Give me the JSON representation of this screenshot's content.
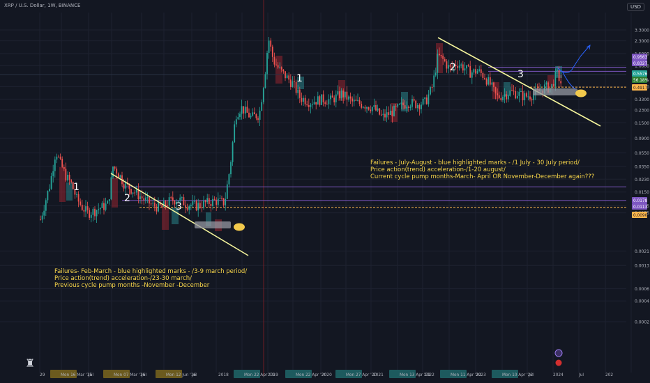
{
  "header": {
    "symbol_line": "XRP / U.S. Dollar, 1W, BINANCE",
    "currency_button": "USD"
  },
  "annotations": {
    "left": [
      "Failures- Feb-March  - blue highlighted marks - /3-9 march period/",
      "Price action(trend) acceleration-/23-30 march/",
      "Previous cycle pump months -November -December"
    ],
    "right": [
      "Failures - July-August - blue highlighted marks - /1 July - 30 July period/",
      "Price action(trend) acceleration-/1-20 august/",
      "Current cycle pump months-March- April OR November-December again???"
    ]
  },
  "wave_labels": [
    "1",
    "2",
    "3",
    "1",
    "2",
    "3"
  ],
  "colors": {
    "background": "#131722",
    "up": "#26a69a",
    "down": "#ef5350",
    "trendline": "#f5f59c",
    "annotation": "#f7d54a",
    "level_purple": "#7e57c2",
    "level_orange": "#ffb74d",
    "highlight_red": "#b22833",
    "highlight_teal": "#2e9ba0",
    "projection": "#2962ff"
  },
  "chart_data": {
    "type": "candlestick",
    "scale": "log",
    "x_ticks": [
      "29",
      "Mon 16 Mar '15",
      "Jul",
      "Mon 07 Mar '16",
      "Jul",
      "Mon 12 Jun '16",
      "Jul",
      "2018",
      "Mon 22 Apr '19",
      "2019",
      "Mon 22 Apr '20",
      "2020",
      "Mon 27 Apr '20",
      "2021",
      "Mon 13 Apr '21",
      "2022",
      "Mon 11 Apr '22",
      "2023",
      "Mon 10 Apr '23",
      "Jul",
      "2024",
      "Jul",
      "202"
    ],
    "y_ticks": [
      3.3,
      2.3,
      1.5,
      1.0,
      0.5,
      0.33,
      0.23,
      0.15,
      0.09,
      0.055,
      0.035,
      0.023,
      0.015,
      0.0095,
      0.0075,
      0.0021,
      0.0013,
      0.0006,
      0.0004,
      0.0002
    ],
    "y_tick_labels": [
      "3.3000",
      "2.3000",
      "1.5000",
      "1.0000",
      "0.5000",
      "0.3300",
      "0.2300",
      "0.1500",
      "0.0900",
      "0.0550",
      "0.0350",
      "0.0230",
      "0.0150",
      "0.0095",
      "0.0075",
      "0.0021",
      "0.0013",
      "0.0006",
      "0.0004",
      "0.0002"
    ],
    "price_tags": [
      {
        "label": "0.9563",
        "value": 0.9563,
        "color": "#7e57c2"
      },
      {
        "label": "0.8327",
        "value": 0.8327,
        "color": "#7e57c2"
      },
      {
        "label": "0.5576",
        "value": 0.5576,
        "color": "#26a69a"
      },
      {
        "label": "56.18%",
        "value": 0.52,
        "color": "#2e7d32"
      },
      {
        "label": "0.4917",
        "value": 0.4917,
        "color": "#ffb74d"
      },
      {
        "label": "0.0178",
        "value": 0.0178,
        "color": "#7e57c2"
      },
      {
        "label": "0.0113",
        "value": 0.0113,
        "color": "#7e57c2"
      },
      {
        "label": "0.0090",
        "value": 0.009,
        "color": "#ffb74d"
      }
    ]
  }
}
